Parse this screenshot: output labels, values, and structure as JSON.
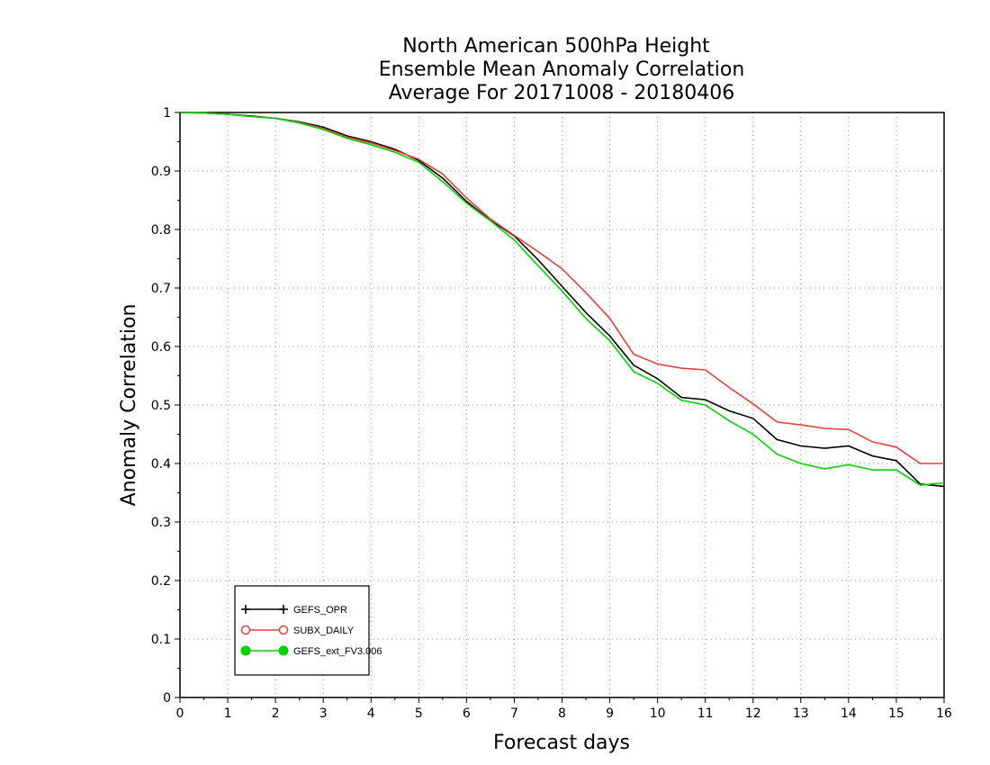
{
  "title_lines": [
    "North American 500hPa Height",
    "Ensemble Mean Anomaly Correlation",
    "Average For 20171008 - 20180406"
  ],
  "chart_data": {
    "type": "line",
    "xlabel": "Forecast days",
    "ylabel": "Anomaly Correlation",
    "xlim": [
      0,
      16
    ],
    "ylim": [
      0,
      1
    ],
    "xticks": [
      0,
      1,
      2,
      3,
      4,
      5,
      6,
      7,
      8,
      9,
      10,
      11,
      12,
      13,
      14,
      15,
      16
    ],
    "yticks": [
      0,
      0.1,
      0.2,
      0.3,
      0.4,
      0.5,
      0.6,
      0.7,
      0.8,
      0.9,
      1
    ],
    "ytick_labels": [
      "0",
      "0.1",
      "0.2",
      "0.3",
      "0.4",
      "0.5",
      "0.6",
      "0.7",
      "0.8",
      "0.9",
      "1"
    ],
    "grid": true,
    "legend_position": "bottom-left",
    "x": [
      0,
      0.5,
      1,
      1.5,
      2,
      2.5,
      3,
      3.5,
      4,
      4.5,
      5,
      5.5,
      6,
      6.5,
      7,
      7.5,
      8,
      8.5,
      9,
      9.5,
      10,
      10.5,
      11,
      11.5,
      12,
      12.5,
      13,
      13.5,
      14,
      14.5,
      15,
      15.5,
      16
    ],
    "series": [
      {
        "name": "GEFS_OPR",
        "color": "#000000",
        "marker": "plus",
        "values": [
          1.0,
          0.999,
          0.997,
          0.994,
          0.99,
          0.984,
          0.975,
          0.96,
          0.95,
          0.937,
          0.918,
          0.888,
          0.848,
          0.816,
          0.789,
          0.748,
          0.703,
          0.658,
          0.618,
          0.568,
          0.545,
          0.513,
          0.509,
          0.49,
          0.477,
          0.441,
          0.43,
          0.426,
          0.43,
          0.413,
          0.405,
          0.365,
          0.361
        ]
      },
      {
        "name": "SUBX_DAILY",
        "color": "#e8403a",
        "marker": "open-circle",
        "values": [
          1.0,
          0.999,
          0.997,
          0.993,
          0.99,
          0.983,
          0.973,
          0.958,
          0.948,
          0.935,
          0.92,
          0.895,
          0.854,
          0.818,
          0.79,
          0.762,
          0.733,
          0.692,
          0.648,
          0.587,
          0.57,
          0.563,
          0.56,
          0.53,
          0.502,
          0.471,
          0.466,
          0.46,
          0.458,
          0.437,
          0.428,
          0.4,
          0.4
        ]
      },
      {
        "name": "GEFS_ext_FV3.006",
        "color": "#00d400",
        "marker": "filled-circle",
        "values": [
          1.0,
          0.999,
          0.997,
          0.993,
          0.99,
          0.982,
          0.971,
          0.956,
          0.945,
          0.932,
          0.915,
          0.882,
          0.845,
          0.815,
          0.782,
          0.738,
          0.695,
          0.648,
          0.61,
          0.557,
          0.537,
          0.508,
          0.5,
          0.473,
          0.45,
          0.416,
          0.4,
          0.391,
          0.398,
          0.389,
          0.389,
          0.363,
          0.367
        ]
      }
    ]
  }
}
